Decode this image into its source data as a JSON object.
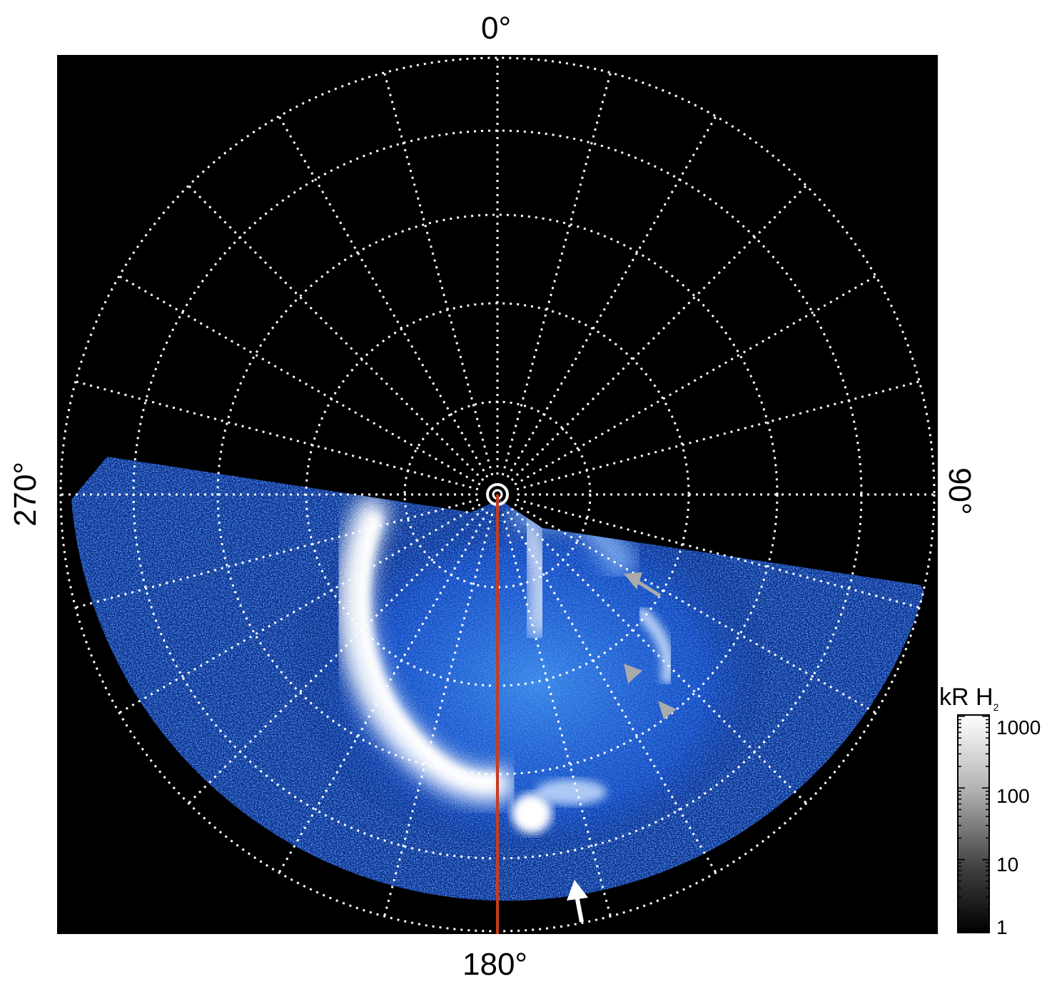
{
  "labels": {
    "top": "0°",
    "bottom": "180°",
    "left": "270°",
    "right": "90°"
  },
  "colorbar": {
    "title_main": "kR H",
    "title_sub": "2",
    "ticks": [
      "1000",
      "100",
      "10",
      "1"
    ]
  },
  "colors": {
    "background": "#000000",
    "grid": "#ffffff",
    "meridian": "#c83c1e",
    "aurora_blue": "#1e64f0",
    "aurora_bright": "#ffffff",
    "arrow_gray": "#aaaaaa",
    "arrow_white": "#ffffff"
  },
  "arrows": [
    {
      "name": "gray-arrow-upper",
      "color": "#aaaaaa"
    },
    {
      "name": "gray-arrowhead-middle",
      "color": "#aaaaaa"
    },
    {
      "name": "gray-arrowhead-lower",
      "color": "#aaaaaa"
    },
    {
      "name": "white-arrow-bottom",
      "color": "#ffffff"
    }
  ]
}
